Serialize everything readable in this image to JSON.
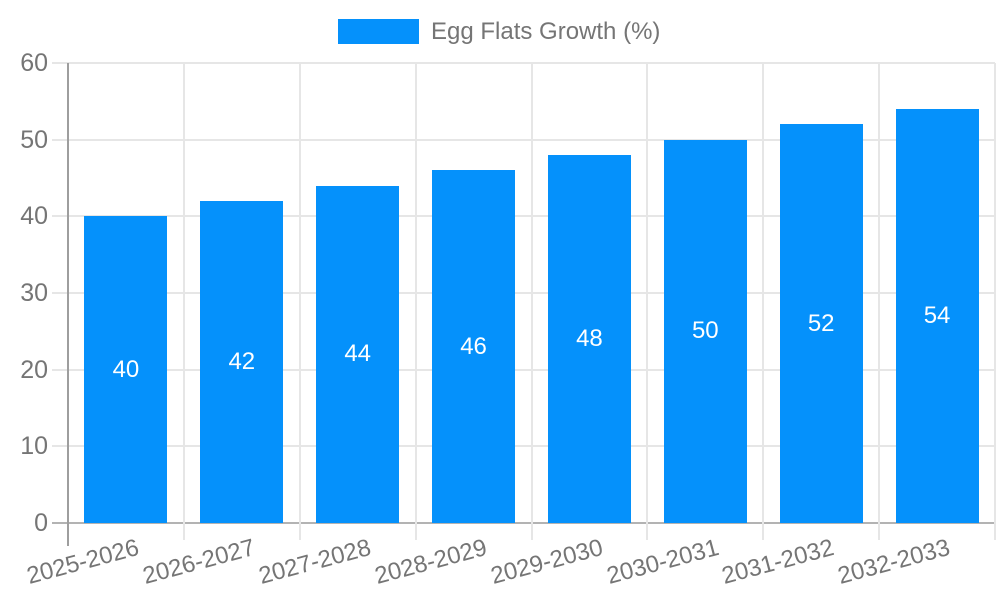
{
  "colors": {
    "bar": "#0591fb",
    "text": "#757575",
    "grid": "#e6e6e6",
    "axis": "#9e9e9e",
    "baseline": "#b3b3b3",
    "bar_label": "#ffffff"
  },
  "chart_data": {
    "type": "bar",
    "title": "",
    "xlabel": "",
    "ylabel": "",
    "legend_label": "Egg Flats Growth (%)",
    "legend_position": "top-center",
    "grid": true,
    "categories": [
      "2025-2026",
      "2026-2027",
      "2027-2028",
      "2028-2029",
      "2029-2030",
      "2030-2031",
      "2031-2032",
      "2032-2033"
    ],
    "values": [
      40,
      42,
      44,
      46,
      48,
      50,
      52,
      54
    ],
    "ylim": [
      0,
      60
    ],
    "yticks": [
      0,
      10,
      20,
      30,
      40,
      50,
      60
    ]
  }
}
